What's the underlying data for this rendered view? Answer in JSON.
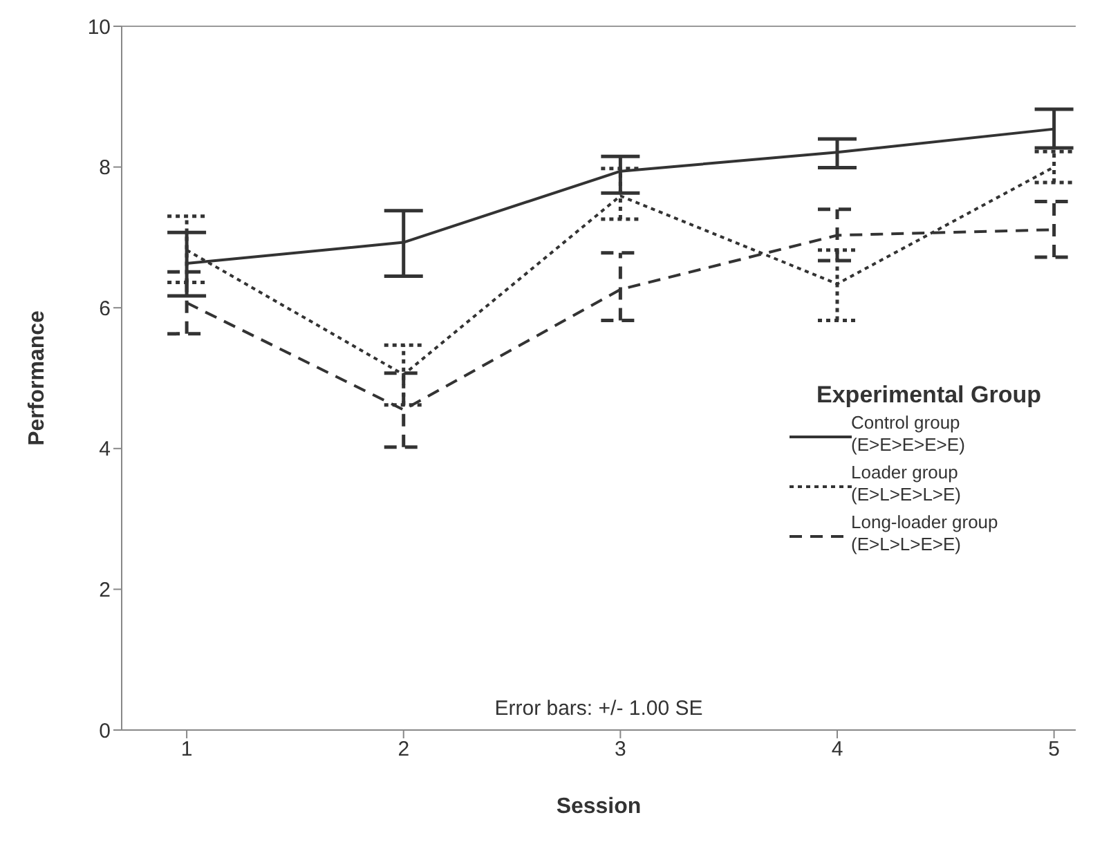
{
  "chart_data": {
    "type": "line",
    "xlabel": "Session",
    "ylabel": "Performance",
    "legend_title": "Experimental Group",
    "legend": "right",
    "marker": "none",
    "categories": [
      "1",
      "2",
      "3",
      "4",
      "5"
    ],
    "ylim": [
      0,
      10
    ],
    "yticks": [
      0,
      2,
      4,
      6,
      8,
      10
    ],
    "grid": false,
    "annotations": [
      "Error bars: +/- 1.00 SE"
    ],
    "series": [
      {
        "name": "Control group (E>E>E>E>E)",
        "color": "#333333",
        "line_style": "solid",
        "values": [
          6.63,
          6.93,
          7.94,
          8.21,
          8.54
        ],
        "errors": [
          [
            6.17,
            7.07
          ],
          [
            6.45,
            7.38
          ],
          [
            7.63,
            8.15
          ],
          [
            7.99,
            8.4
          ],
          [
            8.27,
            8.82
          ]
        ]
      },
      {
        "name": "Loader group (E>L>E>L>E)",
        "color": "#333333",
        "line_style": "dotted",
        "values": [
          6.82,
          5.05,
          7.59,
          6.34,
          8.0
        ],
        "errors": [
          [
            6.36,
            7.3
          ],
          [
            4.62,
            5.47
          ],
          [
            7.26,
            7.98
          ],
          [
            5.82,
            6.82
          ],
          [
            7.78,
            8.22
          ]
        ]
      },
      {
        "name": "Long-loader group (E>L>L>E>E)",
        "color": "#333333",
        "line_style": "dashed",
        "values": [
          6.07,
          4.55,
          6.26,
          7.03,
          7.11
        ],
        "errors": [
          [
            5.63,
            6.51
          ],
          [
            4.02,
            5.07
          ],
          [
            5.82,
            6.78
          ],
          [
            6.67,
            7.4
          ],
          [
            6.72,
            7.51
          ]
        ]
      }
    ]
  }
}
